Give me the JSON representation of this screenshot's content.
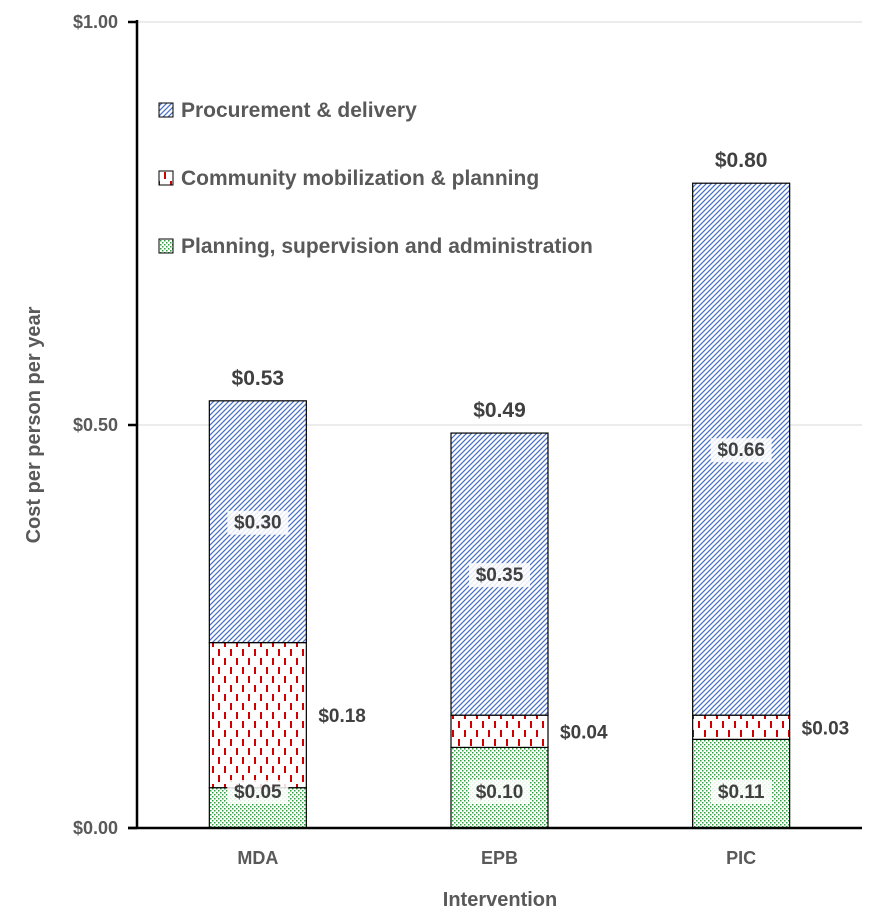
{
  "chart_data": {
    "type": "bar",
    "stacked": true,
    "title": "",
    "xlabel": "Intervention",
    "ylabel": "Cost per person per year",
    "ylim": [
      0,
      1.0
    ],
    "y_ticks": [
      {
        "value": 0.0,
        "label": "$0.00"
      },
      {
        "value": 0.5,
        "label": "$0.50"
      },
      {
        "value": 1.0,
        "label": "$1.00"
      }
    ],
    "grid": true,
    "legend_position": "top-left",
    "categories": [
      "MDA",
      "EPB",
      "PIC"
    ],
    "series": [
      {
        "name": "Planning, supervision and administration",
        "pattern": "dots",
        "color": "#2e9e3e",
        "values": [
          0.05,
          0.1,
          0.11
        ],
        "labels": [
          "$0.05",
          "$0.10",
          "$0.11"
        ],
        "label_position": "inside"
      },
      {
        "name": "Community mobilization & planning",
        "pattern": "dashes",
        "color": "#d00000",
        "values": [
          0.18,
          0.04,
          0.03
        ],
        "labels": [
          "$0.18",
          "$0.04",
          "$0.03"
        ],
        "label_position": "right"
      },
      {
        "name": "Procurement & delivery",
        "pattern": "diagonal",
        "color": "#4a72c4",
        "values": [
          0.3,
          0.35,
          0.66
        ],
        "labels": [
          "$0.30",
          "$0.35",
          "$0.66"
        ],
        "label_position": "inside"
      }
    ],
    "totals": [
      "$0.53",
      "$0.49",
      "$0.80"
    ],
    "totals_values": [
      0.53,
      0.49,
      0.8
    ]
  }
}
